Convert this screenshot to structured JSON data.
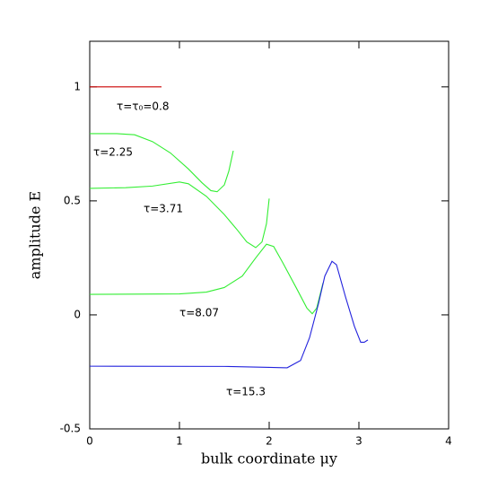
{
  "chart_data": {
    "type": "line",
    "xlabel": "bulk coordinate μy",
    "ylabel": "amplitude E",
    "xlim": [
      0,
      4
    ],
    "ylim": [
      -0.5,
      1.2
    ],
    "xticks": [
      0,
      1,
      2,
      3,
      4
    ],
    "yticks": [
      -0.5,
      0,
      0.5,
      1
    ],
    "series": [
      {
        "name": "τ=τ₀=0.8",
        "color": "#cc0000",
        "x": [
          0,
          0.8
        ],
        "values": [
          1,
          1
        ]
      },
      {
        "name": "τ=2.25",
        "color": "#33ee33",
        "x": [
          0,
          0.3,
          0.5,
          0.7,
          0.9,
          1.1,
          1.25,
          1.35,
          1.42,
          1.5,
          1.55,
          1.6
        ],
        "values": [
          0.795,
          0.795,
          0.79,
          0.76,
          0.71,
          0.64,
          0.58,
          0.545,
          0.54,
          0.57,
          0.63,
          0.72
        ]
      },
      {
        "name": "τ=3.71",
        "color": "#33ee33",
        "x": [
          0,
          0.4,
          0.7,
          1.0,
          1.1,
          1.3,
          1.5,
          1.65,
          1.75,
          1.85,
          1.92,
          1.97,
          2.0
        ],
        "values": [
          0.555,
          0.558,
          0.565,
          0.583,
          0.575,
          0.52,
          0.44,
          0.37,
          0.32,
          0.295,
          0.32,
          0.4,
          0.51
        ]
      },
      {
        "name": "τ=8.07",
        "color": "#33ee33",
        "x": [
          0,
          1.0,
          1.3,
          1.5,
          1.7,
          1.85,
          1.97,
          2.05,
          2.15,
          2.3,
          2.42,
          2.48,
          2.53,
          2.6
        ],
        "values": [
          0.09,
          0.092,
          0.1,
          0.12,
          0.17,
          0.25,
          0.31,
          0.3,
          0.23,
          0.12,
          0.03,
          0.005,
          0.03,
          0.14
        ]
      },
      {
        "name": "τ=15.3",
        "color": "#2222dd",
        "x": [
          0,
          1.5,
          2.0,
          2.2,
          2.35,
          2.45,
          2.55,
          2.62,
          2.7,
          2.75,
          2.85,
          2.95,
          3.02,
          3.06,
          3.1
        ],
        "values": [
          -0.225,
          -0.226,
          -0.23,
          -0.232,
          -0.2,
          -0.1,
          0.05,
          0.17,
          0.235,
          0.22,
          0.08,
          -0.05,
          -0.12,
          -0.12,
          -0.11
        ]
      }
    ]
  }
}
